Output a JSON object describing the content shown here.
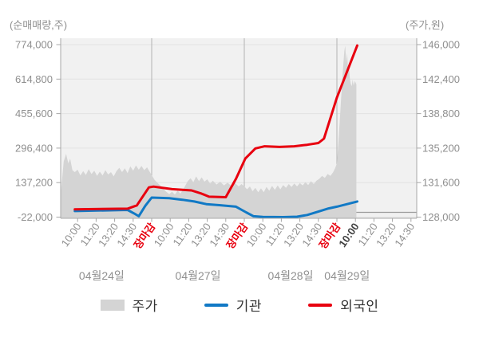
{
  "figure": {
    "left_axis_title": "(순매매량,주)",
    "right_axis_title": "(주가,원)"
  },
  "legend": {
    "items": [
      {
        "label": "주가",
        "swatch": "area",
        "color": "#d4d4d4"
      },
      {
        "label": "기관",
        "swatch": "line",
        "color": "#1179c5"
      },
      {
        "label": "외국인",
        "swatch": "line",
        "color": "#e8000f"
      }
    ]
  },
  "colors": {
    "foreign_red": "#e8000f",
    "institution_blue": "#1179c5",
    "price_gray": "#d4d4d4",
    "plot_bg": "#f1f1f1",
    "gridline": "#e2e2e2",
    "day_line": "#b3b3b3",
    "zero_line": "#9b9b9b",
    "border": "#a8a8a8",
    "axis_text": "#8f8f8f",
    "close_label": "#e8000f",
    "current_label": "#3f3f3f"
  },
  "chart_data": {
    "type": "area+line",
    "description": "Intraday 4-day stock chart: gray area = price (right axis, won), blue = institutions net volume, red = foreigners net volume (left axis, shares)",
    "left_axis": {
      "title": "(순매매량,주)",
      "tick_labels": [
        "774,000",
        "614,800",
        "455,600",
        "296,400",
        "137,200",
        "-22,000"
      ],
      "min": -22000,
      "max": 774000
    },
    "right_axis": {
      "title": "(주가,원)",
      "tick_labels": [
        "146,000",
        "142,400",
        "138,800",
        "135,200",
        "131,600",
        "128,000"
      ],
      "min": 128000,
      "max": 146000
    },
    "x_tick_labels": [
      {
        "label": "10:00",
        "style": "time"
      },
      {
        "label": "11:20",
        "style": "time"
      },
      {
        "label": "13:20",
        "style": "time"
      },
      {
        "label": "14:30",
        "style": "time"
      },
      {
        "label": "장마감",
        "style": "close"
      },
      {
        "label": "10:00",
        "style": "time"
      },
      {
        "label": "11:20",
        "style": "time"
      },
      {
        "label": "13:20",
        "style": "time"
      },
      {
        "label": "14:30",
        "style": "time"
      },
      {
        "label": "장마감",
        "style": "close"
      },
      {
        "label": "10:00",
        "style": "time"
      },
      {
        "label": "11:20",
        "style": "time"
      },
      {
        "label": "13:20",
        "style": "time"
      },
      {
        "label": "14:30",
        "style": "time"
      },
      {
        "label": "장마감",
        "style": "close"
      },
      {
        "label": "10:00",
        "style": "current"
      },
      {
        "label": "11:20",
        "style": "time"
      },
      {
        "label": "13:20",
        "style": "time"
      },
      {
        "label": "14:30",
        "style": "time"
      }
    ],
    "day_boundaries": [
      4,
      9,
      14
    ],
    "dates": [
      {
        "label": "04월24일",
        "center": 1.3
      },
      {
        "label": "04월27일",
        "center": 6.5
      },
      {
        "label": "04월28일",
        "center": 11.5
      },
      {
        "label": "04월29일",
        "center": 14.55
      }
    ],
    "series": [
      {
        "name": "주가",
        "kind": "area",
        "axis": "right",
        "points": [
          [
            -0.9,
            130600
          ],
          [
            -0.75,
            133800
          ],
          [
            -0.62,
            134600
          ],
          [
            -0.5,
            133600
          ],
          [
            -0.4,
            134100
          ],
          [
            -0.28,
            132900
          ],
          [
            -0.15,
            132700
          ],
          [
            0,
            132950
          ],
          [
            0.15,
            132350
          ],
          [
            0.3,
            132800
          ],
          [
            0.45,
            132400
          ],
          [
            0.6,
            133000
          ],
          [
            0.75,
            132500
          ],
          [
            0.9,
            132850
          ],
          [
            1.05,
            132300
          ],
          [
            1.2,
            132750
          ],
          [
            1.35,
            132350
          ],
          [
            1.5,
            132900
          ],
          [
            1.65,
            132450
          ],
          [
            1.8,
            132700
          ],
          [
            1.95,
            132250
          ],
          [
            2.1,
            132800
          ],
          [
            2.25,
            133150
          ],
          [
            2.4,
            132700
          ],
          [
            2.55,
            133100
          ],
          [
            2.7,
            132600
          ],
          [
            2.85,
            133300
          ],
          [
            3.0,
            132850
          ],
          [
            3.15,
            133400
          ],
          [
            3.3,
            132950
          ],
          [
            3.45,
            133350
          ],
          [
            3.6,
            132900
          ],
          [
            3.75,
            133200
          ],
          [
            3.9,
            132700
          ],
          [
            4.0,
            132400
          ],
          [
            4.15,
            131900
          ],
          [
            4.35,
            131500
          ],
          [
            4.55,
            131150
          ],
          [
            4.75,
            130700
          ],
          [
            4.95,
            130400
          ],
          [
            5.1,
            130650
          ],
          [
            5.25,
            130350
          ],
          [
            5.4,
            130750
          ],
          [
            5.55,
            130450
          ],
          [
            5.75,
            131050
          ],
          [
            5.95,
            131750
          ],
          [
            6.1,
            132050
          ],
          [
            6.25,
            131650
          ],
          [
            6.4,
            132250
          ],
          [
            6.55,
            131750
          ],
          [
            6.7,
            132150
          ],
          [
            6.85,
            131700
          ],
          [
            7.0,
            131950
          ],
          [
            7.15,
            131500
          ],
          [
            7.3,
            131800
          ],
          [
            7.5,
            131400
          ],
          [
            7.7,
            131700
          ],
          [
            7.9,
            131300
          ],
          [
            8.1,
            131600
          ],
          [
            8.3,
            131250
          ],
          [
            8.5,
            131550
          ],
          [
            8.7,
            131200
          ],
          [
            8.85,
            131450
          ],
          [
            9.0,
            131200
          ],
          [
            9.15,
            130900
          ],
          [
            9.3,
            131200
          ],
          [
            9.45,
            130700
          ],
          [
            9.6,
            131050
          ],
          [
            9.75,
            130600
          ],
          [
            9.9,
            131000
          ],
          [
            10.05,
            130600
          ],
          [
            10.2,
            131150
          ],
          [
            10.35,
            130750
          ],
          [
            10.5,
            131250
          ],
          [
            10.65,
            130850
          ],
          [
            10.8,
            131300
          ],
          [
            10.95,
            130900
          ],
          [
            11.1,
            131350
          ],
          [
            11.25,
            131050
          ],
          [
            11.4,
            131450
          ],
          [
            11.55,
            131150
          ],
          [
            11.7,
            131500
          ],
          [
            11.85,
            131200
          ],
          [
            12.0,
            131550
          ],
          [
            12.15,
            131300
          ],
          [
            12.3,
            131650
          ],
          [
            12.45,
            131350
          ],
          [
            12.6,
            131750
          ],
          [
            12.75,
            131450
          ],
          [
            12.9,
            131800
          ],
          [
            13.05,
            132000
          ],
          [
            13.2,
            132300
          ],
          [
            13.35,
            132100
          ],
          [
            13.5,
            132500
          ],
          [
            13.65,
            132300
          ],
          [
            13.8,
            132700
          ],
          [
            13.9,
            133100
          ],
          [
            14.0,
            133600
          ],
          [
            14.08,
            135800
          ],
          [
            14.16,
            138200
          ],
          [
            14.24,
            140800
          ],
          [
            14.32,
            143200
          ],
          [
            14.4,
            145300
          ],
          [
            14.45,
            145900
          ],
          [
            14.5,
            144100
          ],
          [
            14.55,
            145100
          ],
          [
            14.6,
            143500
          ],
          [
            14.65,
            143900
          ],
          [
            14.7,
            142500
          ],
          [
            14.75,
            141900
          ],
          [
            14.8,
            141650
          ],
          [
            14.85,
            142350
          ],
          [
            14.9,
            141750
          ],
          [
            14.97,
            142200
          ],
          [
            15.05,
            141850
          ]
        ]
      },
      {
        "name": "기관",
        "kind": "line",
        "axis": "left",
        "points": [
          [
            -0.15,
            6000
          ],
          [
            2.7,
            11000
          ],
          [
            3.05,
            -5000
          ],
          [
            3.3,
            -18000
          ],
          [
            3.65,
            30000
          ],
          [
            4.0,
            68000
          ],
          [
            4.95,
            65000
          ],
          [
            5.65,
            58000
          ],
          [
            6.3,
            50000
          ],
          [
            6.95,
            38000
          ],
          [
            7.65,
            33000
          ],
          [
            8.55,
            26000
          ],
          [
            9.1,
            0
          ],
          [
            9.5,
            -18000
          ],
          [
            10.0,
            -21000
          ],
          [
            11.1,
            -22000
          ],
          [
            11.85,
            -20000
          ],
          [
            12.4,
            -12000
          ],
          [
            13.05,
            5000
          ],
          [
            13.55,
            18000
          ],
          [
            14.0,
            26000
          ],
          [
            14.55,
            38000
          ],
          [
            15.1,
            50000
          ]
        ]
      },
      {
        "name": "외국인",
        "kind": "line",
        "axis": "left",
        "points": [
          [
            -0.15,
            14000
          ],
          [
            2.7,
            17000
          ],
          [
            3.2,
            32000
          ],
          [
            3.85,
            115000
          ],
          [
            4.1,
            119000
          ],
          [
            5.1,
            107000
          ],
          [
            6.15,
            101000
          ],
          [
            6.7,
            86000
          ],
          [
            7.1,
            72000
          ],
          [
            8.0,
            70000
          ],
          [
            8.55,
            155000
          ],
          [
            9.05,
            248000
          ],
          [
            9.6,
            295000
          ],
          [
            10.1,
            305000
          ],
          [
            10.9,
            302000
          ],
          [
            11.7,
            305000
          ],
          [
            12.4,
            312000
          ],
          [
            13.0,
            320000
          ],
          [
            13.3,
            340000
          ],
          [
            14.0,
            530000
          ],
          [
            15.1,
            770000
          ]
        ]
      }
    ]
  }
}
